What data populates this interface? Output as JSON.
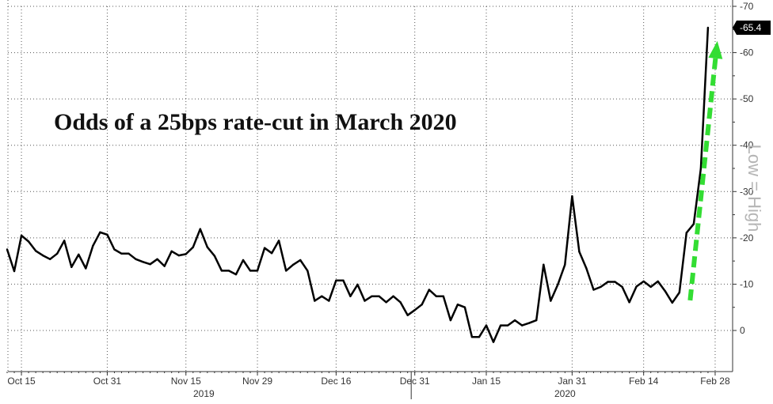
{
  "chart_data": {
    "type": "line",
    "title": "Odds of a 25bps rate-cut in March 2020",
    "side_label": "Low = High",
    "ylim": [
      -10,
      70
    ],
    "y_ticks": [
      0,
      10,
      20,
      30,
      40,
      50,
      60,
      70
    ],
    "y_tick_labels": [
      "0",
      "-10",
      "-20",
      "-30",
      "-40",
      "-50",
      "-60",
      "-70"
    ],
    "x_ticks": [
      {
        "i": 2,
        "label": "Oct 15"
      },
      {
        "i": 14,
        "label": "Oct 31"
      },
      {
        "i": 25,
        "label": "Nov 15"
      },
      {
        "i": 35,
        "label": "Nov 29"
      },
      {
        "i": 46,
        "label": "Dec 16"
      },
      {
        "i": 57,
        "label": "Dec 31"
      },
      {
        "i": 67,
        "label": "Jan 15"
      },
      {
        "i": 79,
        "label": "Jan 31"
      },
      {
        "i": 89,
        "label": "Feb 14"
      },
      {
        "i": 99,
        "label": "Feb 28"
      }
    ],
    "year_labels": [
      {
        "i": 27.5,
        "label": "2019"
      },
      {
        "i": 78,
        "label": "2020"
      }
    ],
    "year_divider_i": 56.5,
    "grid": true,
    "last_value_label": "-65.4",
    "arrow_color": "#33dd33",
    "arrow_from": {
      "i": 95.5,
      "y": 6.5
    },
    "arrow_to": {
      "i": 99.3,
      "y": 62.5
    },
    "series": [
      {
        "color": "#000000",
        "values": [
          17.5,
          12.8,
          20.5,
          19.2,
          17.2,
          16.2,
          15.4,
          16.6,
          19.4,
          13.7,
          16.4,
          13.4,
          18.3,
          21.2,
          20.7,
          17.5,
          16.6,
          16.6,
          15.4,
          14.8,
          14.3,
          15.4,
          13.9,
          17.1,
          16.2,
          16.5,
          18.0,
          21.9,
          18.0,
          16.1,
          12.9,
          12.9,
          12.1,
          15.2,
          12.9,
          12.9,
          17.8,
          16.7,
          19.4,
          12.9,
          14.2,
          15.2,
          12.9,
          6.4,
          7.4,
          6.4,
          10.8,
          10.8,
          7.4,
          9.9,
          6.4,
          7.4,
          7.4,
          6.1,
          7.4,
          6.1,
          3.3,
          4.4,
          5.6,
          8.8,
          7.4,
          7.4,
          2.2,
          5.6,
          5.0,
          -1.4,
          -1.4,
          1.1,
          -2.5,
          1.1,
          1.1,
          2.2,
          1.1,
          1.6,
          2.2,
          14.2,
          6.4,
          9.9,
          14.2,
          29.0,
          17.0,
          13.4,
          8.8,
          9.4,
          10.5,
          10.5,
          9.4,
          6.1,
          9.5,
          10.6,
          9.4,
          10.6,
          8.5,
          6.0,
          8.2,
          21.1,
          23.0,
          35.0,
          65.4
        ]
      }
    ]
  }
}
